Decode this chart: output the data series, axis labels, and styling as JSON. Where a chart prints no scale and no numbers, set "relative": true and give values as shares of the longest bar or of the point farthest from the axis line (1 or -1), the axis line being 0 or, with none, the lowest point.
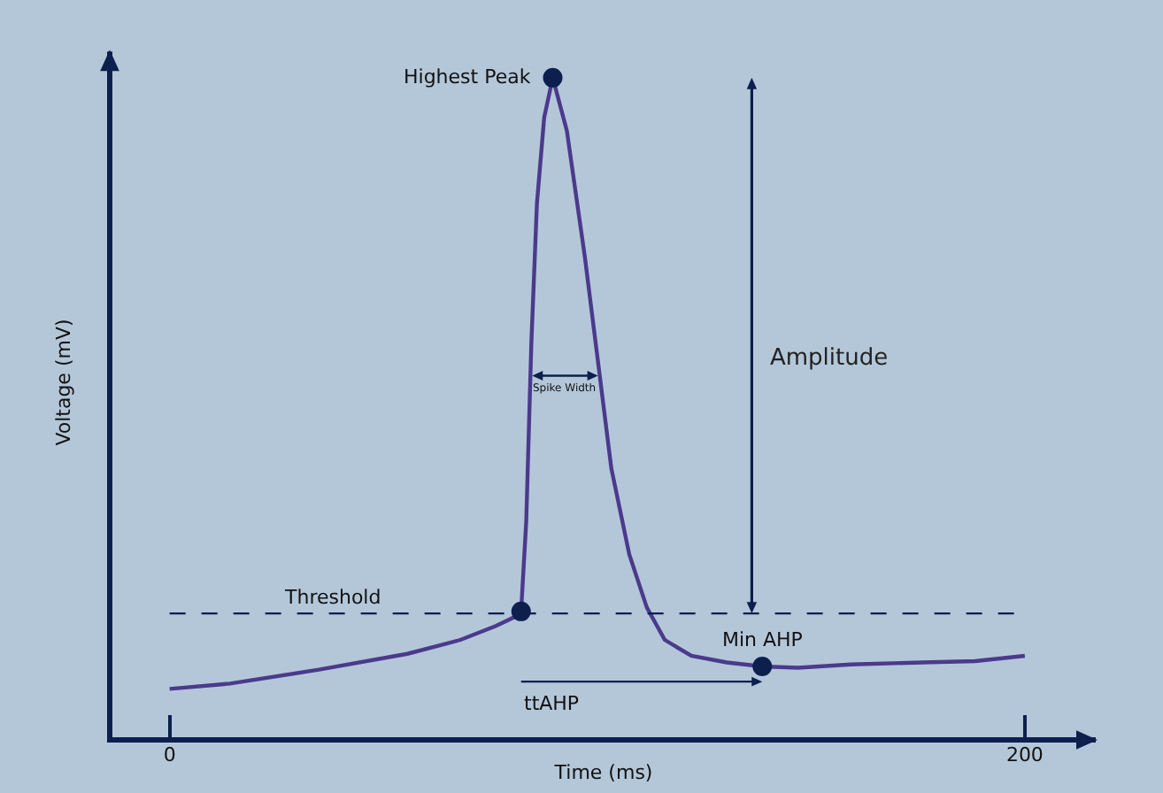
{
  "chart_data": {
    "type": "line",
    "xlabel": "Time (ms)",
    "ylabel": "Voltage (mV)",
    "relative": true,
    "xlim": [
      -14,
      217
    ],
    "xticks": [
      0,
      200
    ],
    "series": [
      {
        "color": "#4b3a8c",
        "line_style": "solid",
        "marker": "none",
        "x": [
          0,
          14.1,
          34.9,
          55.6,
          68,
          76.3,
          80.5,
          82.2,
          83.4,
          84.6,
          85.9,
          87.6,
          89.6,
          92.9,
          97.1,
          100.4,
          103.3,
          107.5,
          111.6,
          115.8,
          122,
          130.3,
          138.6,
          146.9,
          159.3,
          175.9,
          188.4,
          200
        ],
        "values": [
          0.077,
          0.085,
          0.106,
          0.13,
          0.151,
          0.172,
          0.185,
          0.194,
          0.33,
          0.6,
          0.81,
          0.94,
          1,
          0.92,
          0.73,
          0.56,
          0.41,
          0.28,
          0.2,
          0.151,
          0.127,
          0.117,
          0.111,
          0.109,
          0.114,
          0.117,
          0.119,
          0.127
        ]
      },
      {
        "type": "scatter",
        "color": "#0c1f4d",
        "marker": "circle",
        "x": [
          82.2,
          89.6,
          138.6
        ],
        "values": [
          0.194,
          1,
          0.111
        ]
      }
    ],
    "ref_lines": [
      {
        "axis": "y",
        "value": 0.191,
        "label": "Threshold",
        "color": "#0c1f4d",
        "line_style": "dashed"
      }
    ],
    "annotations": [
      {
        "text": "Highest Peak",
        "x": 89.6,
        "y": 1
      },
      "Amplitude",
      "Spike Width",
      {
        "text": "Min AHP",
        "x": 138.6,
        "y": 0.111
      },
      "ttAHP"
    ]
  }
}
